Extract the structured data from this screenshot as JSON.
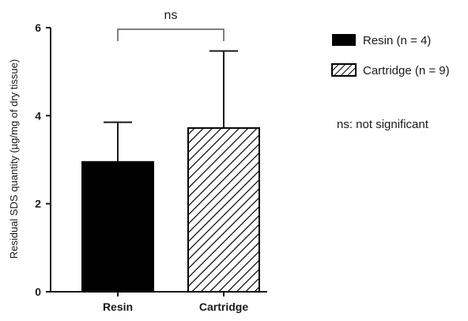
{
  "chart_data": {
    "type": "bar",
    "categories": [
      "Resin",
      "Cartridge"
    ],
    "series": [
      {
        "name": "Resin (n = 4)",
        "values": [
          2.95,
          3.72
        ],
        "error_upper": [
          0.9,
          1.75
        ]
      }
    ],
    "bars": [
      {
        "category": "Resin",
        "value": 2.95,
        "error": 0.9,
        "fill": "solid",
        "legend_label": "Resin (n = 4)"
      },
      {
        "category": "Cartridge",
        "value": 3.72,
        "error": 1.75,
        "fill": "hatched",
        "legend_label": "Cartridge (n = 9)"
      }
    ],
    "ylabel": "Residual SDS quantity (µg/mg of dry tissue)",
    "xlabel": "",
    "ylim": [
      0,
      6
    ],
    "yticks": [
      0,
      2,
      4,
      6
    ],
    "legend": {
      "placement": "right",
      "entries": [
        "Resin (n = 4)",
        "Cartridge (n = 9)"
      ]
    },
    "significance": {
      "label": "ns",
      "between": [
        "Resin",
        "Cartridge"
      ]
    },
    "annotation": "ns: not significant",
    "grid": false
  },
  "colors": {
    "bar_solid": "#000000",
    "axis": "#1a1a1a",
    "text": "#1a1a1a"
  }
}
